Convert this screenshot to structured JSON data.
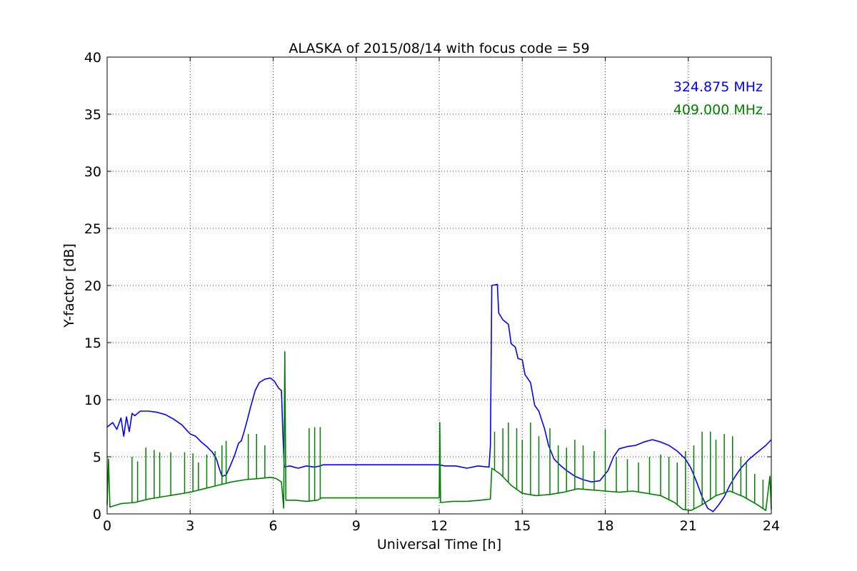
{
  "chart_data": {
    "type": "line",
    "title": "ALASKA of 2015/08/14 with focus code = 59",
    "xlabel": "Universal Time [h]",
    "ylabel": "Y-factor [dB]",
    "xlim": [
      0,
      24
    ],
    "ylim": [
      0,
      40
    ],
    "xticks": [
      "0",
      "3",
      "6",
      "9",
      "12",
      "15",
      "18",
      "21",
      "24"
    ],
    "yticks": [
      "0",
      "5",
      "10",
      "15",
      "20",
      "25",
      "30",
      "35",
      "40"
    ],
    "grid": true,
    "legend_placement": "top-right",
    "series": [
      {
        "name": "324.875 MHz",
        "color": "#0000ff",
        "points": [
          [
            0.0,
            7.6
          ],
          [
            0.2,
            8.0
          ],
          [
            0.35,
            7.4
          ],
          [
            0.5,
            8.4
          ],
          [
            0.6,
            6.8
          ],
          [
            0.7,
            8.5
          ],
          [
            0.8,
            7.2
          ],
          [
            0.9,
            8.8
          ],
          [
            1.0,
            8.6
          ],
          [
            1.2,
            9.0
          ],
          [
            1.5,
            9.0
          ],
          [
            1.8,
            8.9
          ],
          [
            2.1,
            8.7
          ],
          [
            2.4,
            8.3
          ],
          [
            2.7,
            7.8
          ],
          [
            3.0,
            7.0
          ],
          [
            3.2,
            6.8
          ],
          [
            3.4,
            6.3
          ],
          [
            3.6,
            5.9
          ],
          [
            3.8,
            5.4
          ],
          [
            3.95,
            4.8
          ],
          [
            4.05,
            4.0
          ],
          [
            4.15,
            3.3
          ],
          [
            4.3,
            3.4
          ],
          [
            4.45,
            4.2
          ],
          [
            4.6,
            5.1
          ],
          [
            4.75,
            6.2
          ],
          [
            4.85,
            6.4
          ],
          [
            4.95,
            7.2
          ],
          [
            5.05,
            8.1
          ],
          [
            5.2,
            9.5
          ],
          [
            5.35,
            10.8
          ],
          [
            5.5,
            11.5
          ],
          [
            5.7,
            11.8
          ],
          [
            5.9,
            11.9
          ],
          [
            6.05,
            11.6
          ],
          [
            6.2,
            11.0
          ],
          [
            6.3,
            10.8
          ],
          [
            6.35,
            7.0
          ],
          [
            6.4,
            4.1
          ],
          [
            6.6,
            4.2
          ],
          [
            6.9,
            4.0
          ],
          [
            7.2,
            4.2
          ],
          [
            7.5,
            4.1
          ],
          [
            7.7,
            4.2
          ],
          [
            7.8,
            4.3
          ],
          [
            12.0,
            4.3
          ],
          [
            12.2,
            4.2
          ],
          [
            12.6,
            4.2
          ],
          [
            13.0,
            4.0
          ],
          [
            13.4,
            4.2
          ],
          [
            13.8,
            4.1
          ],
          [
            13.85,
            6.0
          ],
          [
            13.9,
            20.0
          ],
          [
            14.1,
            20.1
          ],
          [
            14.15,
            17.6
          ],
          [
            14.3,
            17.0
          ],
          [
            14.5,
            16.6
          ],
          [
            14.6,
            14.9
          ],
          [
            14.75,
            14.6
          ],
          [
            14.85,
            13.6
          ],
          [
            15.0,
            13.5
          ],
          [
            15.1,
            12.2
          ],
          [
            15.3,
            11.5
          ],
          [
            15.45,
            9.5
          ],
          [
            15.6,
            9.0
          ],
          [
            15.8,
            7.5
          ],
          [
            15.95,
            6.0
          ],
          [
            16.15,
            4.8
          ],
          [
            16.4,
            4.2
          ],
          [
            16.6,
            3.8
          ],
          [
            16.9,
            3.3
          ],
          [
            17.2,
            3.0
          ],
          [
            17.5,
            2.8
          ],
          [
            17.8,
            2.9
          ],
          [
            18.1,
            3.8
          ],
          [
            18.3,
            5.0
          ],
          [
            18.5,
            5.7
          ],
          [
            18.8,
            5.9
          ],
          [
            19.1,
            6.0
          ],
          [
            19.4,
            6.3
          ],
          [
            19.7,
            6.5
          ],
          [
            20.0,
            6.3
          ],
          [
            20.3,
            6.0
          ],
          [
            20.6,
            5.5
          ],
          [
            20.9,
            4.8
          ],
          [
            21.1,
            4.0
          ],
          [
            21.3,
            2.8
          ],
          [
            21.5,
            1.5
          ],
          [
            21.7,
            0.5
          ],
          [
            21.9,
            0.2
          ],
          [
            22.1,
            0.8
          ],
          [
            22.3,
            1.5
          ],
          [
            22.5,
            2.5
          ],
          [
            22.7,
            3.3
          ],
          [
            22.9,
            4.0
          ],
          [
            23.2,
            4.8
          ],
          [
            23.5,
            5.4
          ],
          [
            23.8,
            6.0
          ],
          [
            24.0,
            6.5
          ]
        ]
      },
      {
        "name": "409.000 MHz",
        "color": "#008000",
        "points": [
          [
            0.0,
            0.8
          ],
          [
            0.05,
            4.8
          ],
          [
            0.1,
            0.6
          ],
          [
            0.5,
            0.9
          ],
          [
            1.0,
            1.0
          ],
          [
            1.5,
            1.3
          ],
          [
            2.0,
            1.5
          ],
          [
            2.5,
            1.7
          ],
          [
            3.0,
            1.9
          ],
          [
            3.5,
            2.2
          ],
          [
            4.0,
            2.5
          ],
          [
            4.5,
            2.8
          ],
          [
            5.0,
            3.0
          ],
          [
            5.5,
            3.1
          ],
          [
            5.9,
            3.2
          ],
          [
            6.1,
            3.1
          ],
          [
            6.3,
            2.8
          ],
          [
            6.38,
            0.5
          ],
          [
            6.42,
            14.2
          ],
          [
            6.46,
            1.2
          ],
          [
            6.8,
            1.2
          ],
          [
            7.2,
            1.1
          ],
          [
            7.6,
            1.2
          ],
          [
            7.75,
            1.4
          ],
          [
            12.0,
            1.4
          ],
          [
            12.02,
            8.0
          ],
          [
            12.05,
            1.0
          ],
          [
            12.5,
            1.1
          ],
          [
            13.0,
            1.1
          ],
          [
            13.5,
            1.2
          ],
          [
            13.85,
            1.3
          ],
          [
            13.9,
            4.0
          ],
          [
            14.2,
            3.5
          ],
          [
            14.6,
            2.5
          ],
          [
            15.0,
            1.8
          ],
          [
            15.5,
            1.6
          ],
          [
            16.0,
            1.7
          ],
          [
            16.5,
            1.9
          ],
          [
            17.0,
            2.2
          ],
          [
            17.5,
            2.1
          ],
          [
            18.0,
            2.0
          ],
          [
            18.5,
            1.9
          ],
          [
            19.0,
            2.0
          ],
          [
            19.5,
            1.8
          ],
          [
            20.0,
            1.6
          ],
          [
            20.5,
            1.0
          ],
          [
            20.8,
            0.4
          ],
          [
            21.1,
            0.3
          ],
          [
            21.5,
            0.8
          ],
          [
            22.0,
            1.6
          ],
          [
            22.5,
            2.0
          ],
          [
            23.0,
            1.5
          ],
          [
            23.5,
            0.8
          ],
          [
            23.8,
            0.3
          ],
          [
            23.95,
            3.3
          ],
          [
            24.0,
            0.4
          ]
        ],
        "spikes": [
          [
            0.9,
            5.0
          ],
          [
            1.1,
            4.6
          ],
          [
            1.4,
            5.8
          ],
          [
            1.7,
            5.6
          ],
          [
            1.9,
            5.4
          ],
          [
            2.3,
            5.4
          ],
          [
            2.8,
            5.4
          ],
          [
            3.1,
            5.3
          ],
          [
            3.3,
            4.5
          ],
          [
            3.6,
            5.2
          ],
          [
            3.9,
            5.5
          ],
          [
            4.15,
            6.0
          ],
          [
            4.3,
            6.4
          ],
          [
            5.1,
            7.0
          ],
          [
            5.4,
            7.0
          ],
          [
            5.7,
            6.0
          ],
          [
            7.3,
            7.5
          ],
          [
            7.5,
            7.6
          ],
          [
            7.7,
            7.6
          ],
          [
            14.0,
            7.2
          ],
          [
            14.3,
            7.5
          ],
          [
            14.5,
            8.0
          ],
          [
            14.8,
            7.5
          ],
          [
            15.0,
            6.5
          ],
          [
            15.3,
            8.0
          ],
          [
            15.6,
            6.8
          ],
          [
            16.0,
            7.5
          ],
          [
            16.3,
            6.0
          ],
          [
            16.6,
            5.8
          ],
          [
            16.9,
            6.5
          ],
          [
            17.2,
            6.0
          ],
          [
            17.6,
            5.5
          ],
          [
            18.0,
            7.4
          ],
          [
            18.4,
            5.0
          ],
          [
            18.8,
            4.8
          ],
          [
            19.2,
            4.5
          ],
          [
            19.6,
            5.0
          ],
          [
            20.0,
            5.2
          ],
          [
            20.3,
            5.0
          ],
          [
            20.6,
            4.5
          ],
          [
            20.9,
            5.5
          ],
          [
            21.2,
            6.0
          ],
          [
            21.5,
            7.2
          ],
          [
            21.8,
            7.2
          ],
          [
            22.0,
            6.5
          ],
          [
            22.3,
            7.0
          ],
          [
            22.6,
            6.8
          ],
          [
            22.9,
            5.0
          ],
          [
            23.1,
            4.5
          ],
          [
            23.4,
            3.5
          ],
          [
            23.7,
            3.0
          ]
        ]
      }
    ]
  }
}
